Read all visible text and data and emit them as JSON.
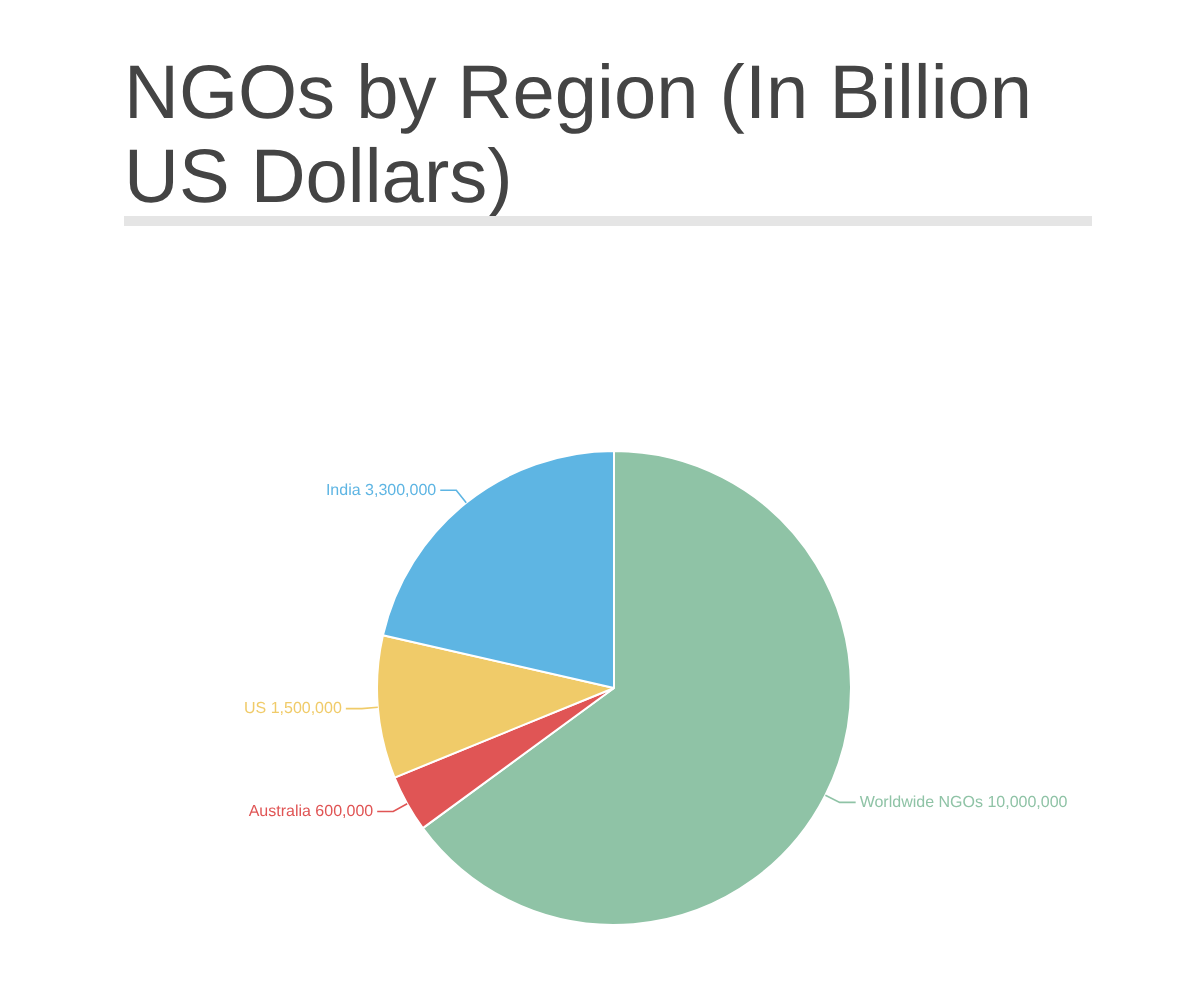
{
  "chart_data": {
    "type": "pie",
    "title": "NGOs by Region (In Billion US Dollars)",
    "categories": [
      "Worldwide NGOs",
      "Australia",
      "US",
      "India"
    ],
    "values": [
      10000000,
      600000,
      1500000,
      3300000
    ],
    "value_labels": [
      "10,000,000",
      "600,000",
      "1,500,000",
      "3,300,000"
    ],
    "colors": [
      "#8fc3a6",
      "#e05555",
      "#f0cb69",
      "#5eb5e3"
    ],
    "legend": false
  }
}
